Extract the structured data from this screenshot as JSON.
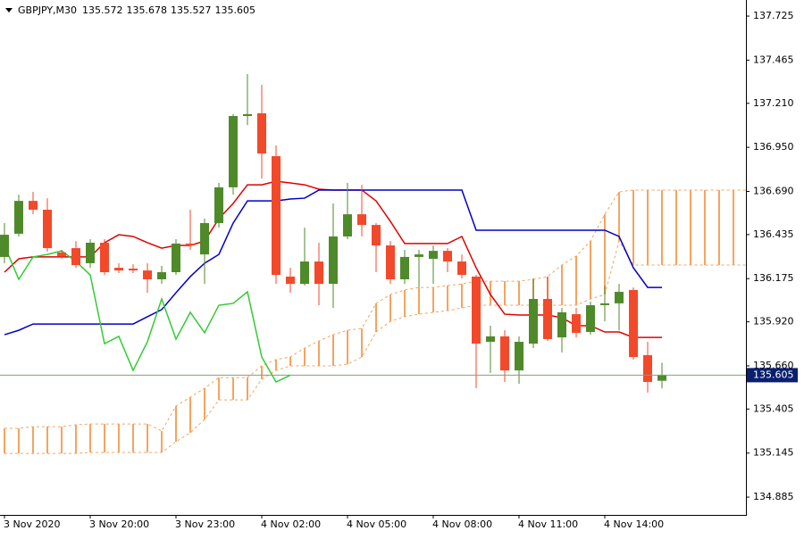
{
  "chart_data": {
    "type": "candlestick",
    "title": "GBPJPY,M30",
    "categories": [
      "3 Nov 2020",
      null,
      null,
      null,
      null,
      null,
      "3 Nov 20:00",
      null,
      null,
      null,
      null,
      null,
      "3 Nov 23:00",
      null,
      null,
      null,
      null,
      null,
      "4 Nov 02:00",
      null,
      null,
      null,
      null,
      null,
      "4 Nov 05:00",
      null,
      null,
      null,
      null,
      null,
      "4 Nov 08:00",
      null,
      null,
      null,
      null,
      null,
      "4 Nov 11:00",
      null,
      null,
      null,
      null,
      null,
      "4 Nov 14:00",
      null,
      null,
      null,
      null,
      null,
      null,
      null,
      null,
      null,
      null
    ],
    "open": [
      136.303,
      136.44,
      136.634,
      136.582,
      136.329,
      136.355,
      136.266,
      136.387,
      136.239,
      136.234,
      136.223,
      136.171,
      136.213,
      136.382,
      136.318,
      136.503,
      136.714,
      137.135,
      137.151,
      136.898,
      136.187,
      136.144,
      136.276,
      136.144,
      136.424,
      136.555,
      136.492,
      136.371,
      136.171,
      136.303,
      136.292,
      136.339,
      136.276,
      136.187,
      135.802,
      135.834,
      135.633,
      135.791,
      136.055,
      135.828,
      135.965,
      135.86,
      136.029,
      136.029,
      136.108,
      135.723,
      135.572,
      null,
      null,
      null,
      null,
      null,
      null
    ],
    "high": [
      136.503,
      136.671,
      136.687,
      136.65,
      136.345,
      136.397,
      136.408,
      136.408,
      136.266,
      136.26,
      136.266,
      136.25,
      136.408,
      136.582,
      136.529,
      136.74,
      137.146,
      137.383,
      137.319,
      136.961,
      136.239,
      136.476,
      136.387,
      136.619,
      136.74,
      136.729,
      136.503,
      136.397,
      136.345,
      136.345,
      136.371,
      136.355,
      136.318,
      136.197,
      135.897,
      135.87,
      135.834,
      136.176,
      136.187,
      136.002,
      136.002,
      136.039,
      136.134,
      136.144,
      136.123,
      135.802,
      135.678,
      null,
      null,
      null,
      null,
      null,
      null
    ],
    "low": [
      136.266,
      136.424,
      136.555,
      136.334,
      136.292,
      136.239,
      136.239,
      136.197,
      136.208,
      136.208,
      136.092,
      136.144,
      136.197,
      136.345,
      136.144,
      136.476,
      136.671,
      137.082,
      136.766,
      136.144,
      136.092,
      136.134,
      136.018,
      136.002,
      136.408,
      136.424,
      136.213,
      136.144,
      136.144,
      136.123,
      136.144,
      136.213,
      136.176,
      135.528,
      135.618,
      135.565,
      135.554,
      135.765,
      135.807,
      135.739,
      135.828,
      135.844,
      135.923,
      135.87,
      135.697,
      135.502,
      135.527,
      null,
      null,
      null,
      null,
      null,
      null
    ],
    "close": [
      136.434,
      136.634,
      136.582,
      136.355,
      136.308,
      136.255,
      136.387,
      136.213,
      136.223,
      136.229,
      136.171,
      136.213,
      136.382,
      136.371,
      136.503,
      136.714,
      137.135,
      137.146,
      136.914,
      136.197,
      136.144,
      136.276,
      136.144,
      136.424,
      136.555,
      136.492,
      136.371,
      136.171,
      136.303,
      136.318,
      136.339,
      136.276,
      136.197,
      135.791,
      135.834,
      135.633,
      135.802,
      136.055,
      135.818,
      135.976,
      135.855,
      136.018,
      136.029,
      136.097,
      135.712,
      135.565,
      135.605,
      null,
      null,
      null,
      null,
      null,
      null
    ],
    "up_color": "#4e8a2a",
    "down_color": "#f2492b",
    "lines": [
      {
        "color": "#e00000",
        "values": [
          136.213,
          136.292,
          136.303,
          136.303,
          136.303,
          136.303,
          136.303,
          136.387,
          136.434,
          136.424,
          136.387,
          136.355,
          136.371,
          136.371,
          136.397,
          136.529,
          136.619,
          136.729,
          136.729,
          136.75,
          136.74,
          136.729,
          136.703,
          136.698,
          136.698,
          136.698,
          136.634,
          136.513,
          136.382,
          136.382,
          136.382,
          136.382,
          136.424,
          136.239,
          136.081,
          135.965,
          135.96,
          135.96,
          135.96,
          135.944,
          135.897,
          135.897,
          135.86,
          135.86,
          135.828,
          135.828,
          135.828,
          null,
          null,
          null,
          null,
          null,
          null
        ]
      },
      {
        "color": "#0000c8",
        "values": [
          135.844,
          135.87,
          135.907,
          135.907,
          135.907,
          135.907,
          135.907,
          135.907,
          135.907,
          135.907,
          135.95,
          135.992,
          136.092,
          136.187,
          136.266,
          136.318,
          136.503,
          136.634,
          136.634,
          136.634,
          136.645,
          136.65,
          136.698,
          136.698,
          136.698,
          136.698,
          136.698,
          136.698,
          136.698,
          136.698,
          136.698,
          136.698,
          136.698,
          136.461,
          136.461,
          136.461,
          136.461,
          136.461,
          136.461,
          136.461,
          136.461,
          136.461,
          136.461,
          136.424,
          136.239,
          136.123,
          136.123,
          null,
          null,
          null,
          null,
          null,
          null
        ]
      },
      {
        "color": "#33cc33",
        "values": [
          136.371,
          136.171,
          136.303,
          136.318,
          136.339,
          136.276,
          136.197,
          135.791,
          135.834,
          135.633,
          135.802,
          136.055,
          135.818,
          135.976,
          135.855,
          136.018,
          136.029,
          136.097,
          135.712,
          135.565,
          135.605,
          null,
          null,
          null,
          null,
          null,
          null,
          null,
          null,
          null,
          null,
          null,
          null,
          null,
          null,
          null,
          null,
          null,
          null,
          null,
          null,
          null,
          null,
          null,
          null,
          null,
          null,
          null,
          null,
          null,
          null,
          null,
          null
        ]
      }
    ],
    "cloud": {
      "color": "#f4a460",
      "upper": [
        135.291,
        135.291,
        135.301,
        135.301,
        135.301,
        135.312,
        135.317,
        135.317,
        135.317,
        135.317,
        135.317,
        135.275,
        135.423,
        135.475,
        135.528,
        135.591,
        135.591,
        135.591,
        135.66,
        135.697,
        135.712,
        135.765,
        135.807,
        135.844,
        135.87,
        135.881,
        136.029,
        136.081,
        136.108,
        136.123,
        136.123,
        136.134,
        136.144,
        136.16,
        136.16,
        136.16,
        136.16,
        136.171,
        136.187,
        136.255,
        136.308,
        136.397,
        136.555,
        136.687,
        136.698,
        136.698,
        136.698,
        136.698,
        136.698,
        136.698,
        136.698,
        136.698,
        136.698
      ],
      "lower": [
        135.143,
        135.143,
        135.143,
        135.143,
        135.143,
        135.143,
        135.149,
        135.149,
        135.149,
        135.149,
        135.149,
        135.149,
        135.212,
        135.265,
        135.344,
        135.459,
        135.459,
        135.459,
        135.581,
        135.633,
        135.66,
        135.66,
        135.66,
        135.66,
        135.67,
        135.712,
        135.86,
        135.923,
        135.95,
        135.965,
        135.976,
        135.986,
        136.002,
        136.018,
        136.018,
        136.018,
        136.018,
        136.018,
        136.018,
        136.018,
        136.018,
        136.055,
        136.081,
        136.397,
        136.255,
        136.255,
        136.255,
        136.255,
        136.255,
        136.255,
        136.255,
        136.255,
        136.255
      ]
    },
    "price_line_color": "#7f9f7f",
    "price_box_color": "#0a1f6e",
    "ylim": [
      134.78,
      137.82
    ],
    "yticks": [
      134.885,
      135.145,
      135.405,
      {
        "value": 135.66,
        "label": "135.660"
      },
      {
        "value": 135.92,
        "label": "135.920"
      },
      136.175,
      136.435,
      {
        "value": 136.69,
        "label": "136.690"
      },
      {
        "value": 136.95,
        "label": "136.950"
      },
      {
        "value": 137.21,
        "label": "137.210"
      },
      137.465,
      137.725
    ]
  }
}
